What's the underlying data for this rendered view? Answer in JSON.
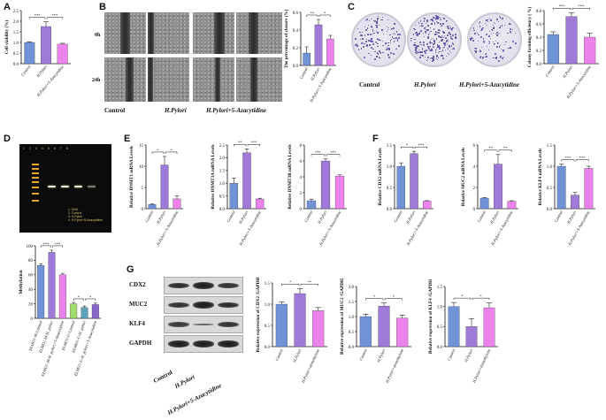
{
  "panel_letters": [
    "A",
    "B",
    "C",
    "D",
    "E",
    "F",
    "G"
  ],
  "colors": {
    "control": "#6f93d6",
    "hpylori": "#a07ad8",
    "aza": "#ec82ec",
    "ctrl2": "#9fdc6a",
    "hp2": "#5aa3b8",
    "aza2": "#8866cc"
  },
  "panel_b": {
    "row_labels": [
      "0h",
      "24h"
    ],
    "col_labels": [
      "Control",
      "H.Pylori",
      "H.Pylori+5-Azacytidine"
    ]
  },
  "panel_c": {
    "col_labels": [
      "Control",
      "H.Pylori",
      "H.Pylori+5-Azacytidine"
    ]
  },
  "panel_d": {
    "gel_lane_numbers": [
      "1",
      "2",
      "3",
      "4",
      "5",
      "6",
      "7",
      "8"
    ],
    "gel_legend": [
      "1. DNA",
      "2. Control",
      "3. H.Pylori",
      "4. H.Pylori+5-Azacytidine"
    ]
  },
  "panel_g": {
    "blot_labels": [
      "CDX2",
      "MUC2",
      "KLF4",
      "GAPDH"
    ],
    "col_labels": [
      "Control",
      "H.Pylori",
      "H.Pylori+5-Azacytidine"
    ]
  },
  "chart_data": [
    {
      "id": "A",
      "type": "bar",
      "ylabel": "Cell viability (%)",
      "ylim": [
        0,
        2.5
      ],
      "yticks": [
        "0.0",
        "0.5",
        "1.0",
        "1.5",
        "2.0",
        "2.5"
      ],
      "categories": [
        "Control",
        "H.Pylori",
        "H.Pylori+5-Azacytidine"
      ],
      "values": [
        1.0,
        1.75,
        0.92
      ],
      "errors": [
        0.03,
        0.22,
        0.04
      ],
      "colors": [
        "#6f93d6",
        "#a07ad8",
        "#ec82ec"
      ],
      "sig": [
        "***",
        "***"
      ]
    },
    {
      "id": "B",
      "type": "bar",
      "ylabel": "The percentage of closure (%)",
      "ylim": [
        0,
        0.6
      ],
      "yticks": [
        "0.0",
        "0.2",
        "0.4",
        "0.6"
      ],
      "categories": [
        "Control",
        "H.Pylori",
        "H.Pylori+5-Azacytidine"
      ],
      "values": [
        0.14,
        0.46,
        0.3
      ],
      "errors": [
        0.07,
        0.06,
        0.04
      ],
      "colors": [
        "#6f93d6",
        "#a07ad8",
        "#ec82ec"
      ],
      "sig": [
        "**",
        "*"
      ]
    },
    {
      "id": "C",
      "type": "bar",
      "ylabel": "Colony forming efficiency ( %)",
      "ylim": [
        0,
        0.8
      ],
      "yticks": [
        "0.0",
        "0.2",
        "0.4",
        "0.6",
        "0.8"
      ],
      "categories": [
        "Control",
        "H.Pylori",
        "H.Pylori+5-Azacytidine"
      ],
      "values": [
        0.44,
        0.71,
        0.4
      ],
      "errors": [
        0.04,
        0.06,
        0.06
      ],
      "colors": [
        "#6f93d6",
        "#a07ad8",
        "#ec82ec"
      ],
      "sig": [
        "***",
        "***"
      ]
    },
    {
      "id": "D",
      "type": "bar",
      "ylabel": "Methylation",
      "ylim": [
        0,
        100
      ],
      "yticks": [
        "0",
        "20",
        "40",
        "60",
        "80",
        "100"
      ],
      "categories": [
        "ELMO1-M-Control",
        "ELMO1-M-H. pylori",
        "ELMO1-M-H. pylori+5-Azacytidine",
        "ELMO1-U-Control",
        "ELMO1-U-H. pylori",
        "ELMO1-U-H. pylori+5-Azacytidine"
      ],
      "values": [
        73,
        91,
        60,
        20,
        15,
        19
      ],
      "errors": [
        2,
        3,
        2,
        2,
        2,
        2
      ],
      "colors": [
        "#6f93d6",
        "#a07ad8",
        "#ec82ec",
        "#9fdc6a",
        "#5aa3b8",
        "#8866cc"
      ],
      "sig": [
        "***",
        "***",
        "*",
        "*"
      ]
    },
    {
      "id": "E1",
      "type": "bar",
      "ylabel": "Relative DNMT1 mRNA Levels",
      "ylim": [
        0,
        15
      ],
      "yticks": [
        "0",
        "5",
        "10",
        "15"
      ],
      "categories": [
        "Control",
        "H.Pylori",
        "H.Pylori+5-Azacytidine"
      ],
      "values": [
        1.0,
        10.3,
        2.3
      ],
      "errors": [
        0.15,
        2.0,
        0.7
      ],
      "colors": [
        "#6f93d6",
        "#a07ad8",
        "#ec82ec"
      ],
      "sig": [
        "*",
        "*"
      ]
    },
    {
      "id": "E2",
      "type": "bar",
      "ylabel": "Relative DNMT3A mRNA Levels",
      "ylim": [
        0,
        2.5
      ],
      "yticks": [
        "0.0",
        "0.5",
        "1.0",
        "1.5",
        "2.0",
        "2.5"
      ],
      "categories": [
        "Control",
        "H.Pylori",
        "H.Pylori+5-Azacytidine"
      ],
      "values": [
        1.0,
        2.2,
        0.38
      ],
      "errors": [
        0.2,
        0.15,
        0.03
      ],
      "colors": [
        "#6f93d6",
        "#a07ad8",
        "#ec82ec"
      ],
      "sig": [
        "**",
        "***"
      ]
    },
    {
      "id": "E3",
      "type": "bar",
      "ylabel": "Relative DNMT3B mRNA Levels",
      "ylim": [
        0,
        8
      ],
      "yticks": [
        "0",
        "2",
        "4",
        "6",
        "8"
      ],
      "categories": [
        "Control",
        "H.Pylori",
        "H.Pylori+5-Azacytidine"
      ],
      "values": [
        1.0,
        6.0,
        4.1
      ],
      "errors": [
        0.2,
        0.25,
        0.15
      ],
      "colors": [
        "#6f93d6",
        "#a07ad8",
        "#ec82ec"
      ],
      "sig": [
        "***",
        "***"
      ]
    },
    {
      "id": "F1",
      "type": "bar",
      "ylabel": "Relative CDX2 mRNA Levels",
      "ylim": [
        0,
        1.5
      ],
      "yticks": [
        "0.0",
        "0.5",
        "1.0",
        "1.5"
      ],
      "categories": [
        "Control",
        "H.Pylori",
        "H.Pylori+5-Azacytidine"
      ],
      "values": [
        1.0,
        1.3,
        0.18
      ],
      "errors": [
        0.08,
        0.05,
        0.01
      ],
      "colors": [
        "#6f93d6",
        "#a07ad8",
        "#ec82ec"
      ],
      "sig": [
        "*",
        "***"
      ]
    },
    {
      "id": "F2",
      "type": "bar",
      "ylabel": "Relative MUC2 mRNA Levels",
      "ylim": [
        0,
        6
      ],
      "yticks": [
        "0",
        "2",
        "4",
        "6"
      ],
      "categories": [
        "Control",
        "H.Pylori",
        "H.Pylori+5-Azacytidine"
      ],
      "values": [
        1.0,
        4.2,
        0.7
      ],
      "errors": [
        0.05,
        0.9,
        0.05
      ],
      "colors": [
        "#6f93d6",
        "#a07ad8",
        "#ec82ec"
      ],
      "sig": [
        "**",
        "**"
      ]
    },
    {
      "id": "F3",
      "type": "bar",
      "ylabel": "Relative KLF4 mRNA Levels",
      "ylim": [
        0,
        1.5
      ],
      "yticks": [
        "0.0",
        "0.5",
        "1.0",
        "1.5"
      ],
      "categories": [
        "Control",
        "H.Pylori",
        "H.Pylori+5-Azacytidine"
      ],
      "values": [
        1.0,
        0.32,
        0.95
      ],
      "errors": [
        0.05,
        0.06,
        0.05
      ],
      "colors": [
        "#6f93d6",
        "#a07ad8",
        "#ec82ec"
      ],
      "sig": [
        "***",
        "***"
      ]
    },
    {
      "id": "G1",
      "type": "bar",
      "ylabel": "Relative expression of CDX2 /GAPDH",
      "ylim": [
        0,
        1.5
      ],
      "yticks": [
        "0.0",
        "0.5",
        "1.0",
        "1.5"
      ],
      "categories": [
        "Control",
        "H.Pylori",
        "H.Pylori+demethylase"
      ],
      "values": [
        1.0,
        1.25,
        0.85
      ],
      "errors": [
        0.05,
        0.12,
        0.07
      ],
      "colors": [
        "#6f93d6",
        "#a07ad8",
        "#ec82ec"
      ],
      "sig": [
        "*",
        "**"
      ]
    },
    {
      "id": "G2",
      "type": "bar",
      "ylabel": "Relative expression of MUC2 /GAPDH",
      "ylim": [
        0,
        2.0
      ],
      "yticks": [
        "0.0",
        "0.5",
        "1.0",
        "1.5",
        "2.0"
      ],
      "categories": [
        "Control",
        "H.Pylori",
        "H.Pylori+demethylase"
      ],
      "values": [
        1.0,
        1.35,
        0.95
      ],
      "errors": [
        0.08,
        0.1,
        0.1
      ],
      "colors": [
        "#6f93d6",
        "#a07ad8",
        "#ec82ec"
      ],
      "sig": [
        "*",
        "*"
      ]
    },
    {
      "id": "G3",
      "type": "bar",
      "ylabel": "Relative expression of KLF4 /GAPDH",
      "ylim": [
        0,
        1.5
      ],
      "yticks": [
        "0.0",
        "0.5",
        "1.0",
        "1.5"
      ],
      "categories": [
        "Control",
        "H.Pylori",
        "H.Pylori+demethylase"
      ],
      "values": [
        1.0,
        0.5,
        0.97
      ],
      "errors": [
        0.1,
        0.2,
        0.12
      ],
      "colors": [
        "#6f93d6",
        "#a07ad8",
        "#ec82ec"
      ],
      "sig": [
        "*",
        "*"
      ]
    }
  ]
}
